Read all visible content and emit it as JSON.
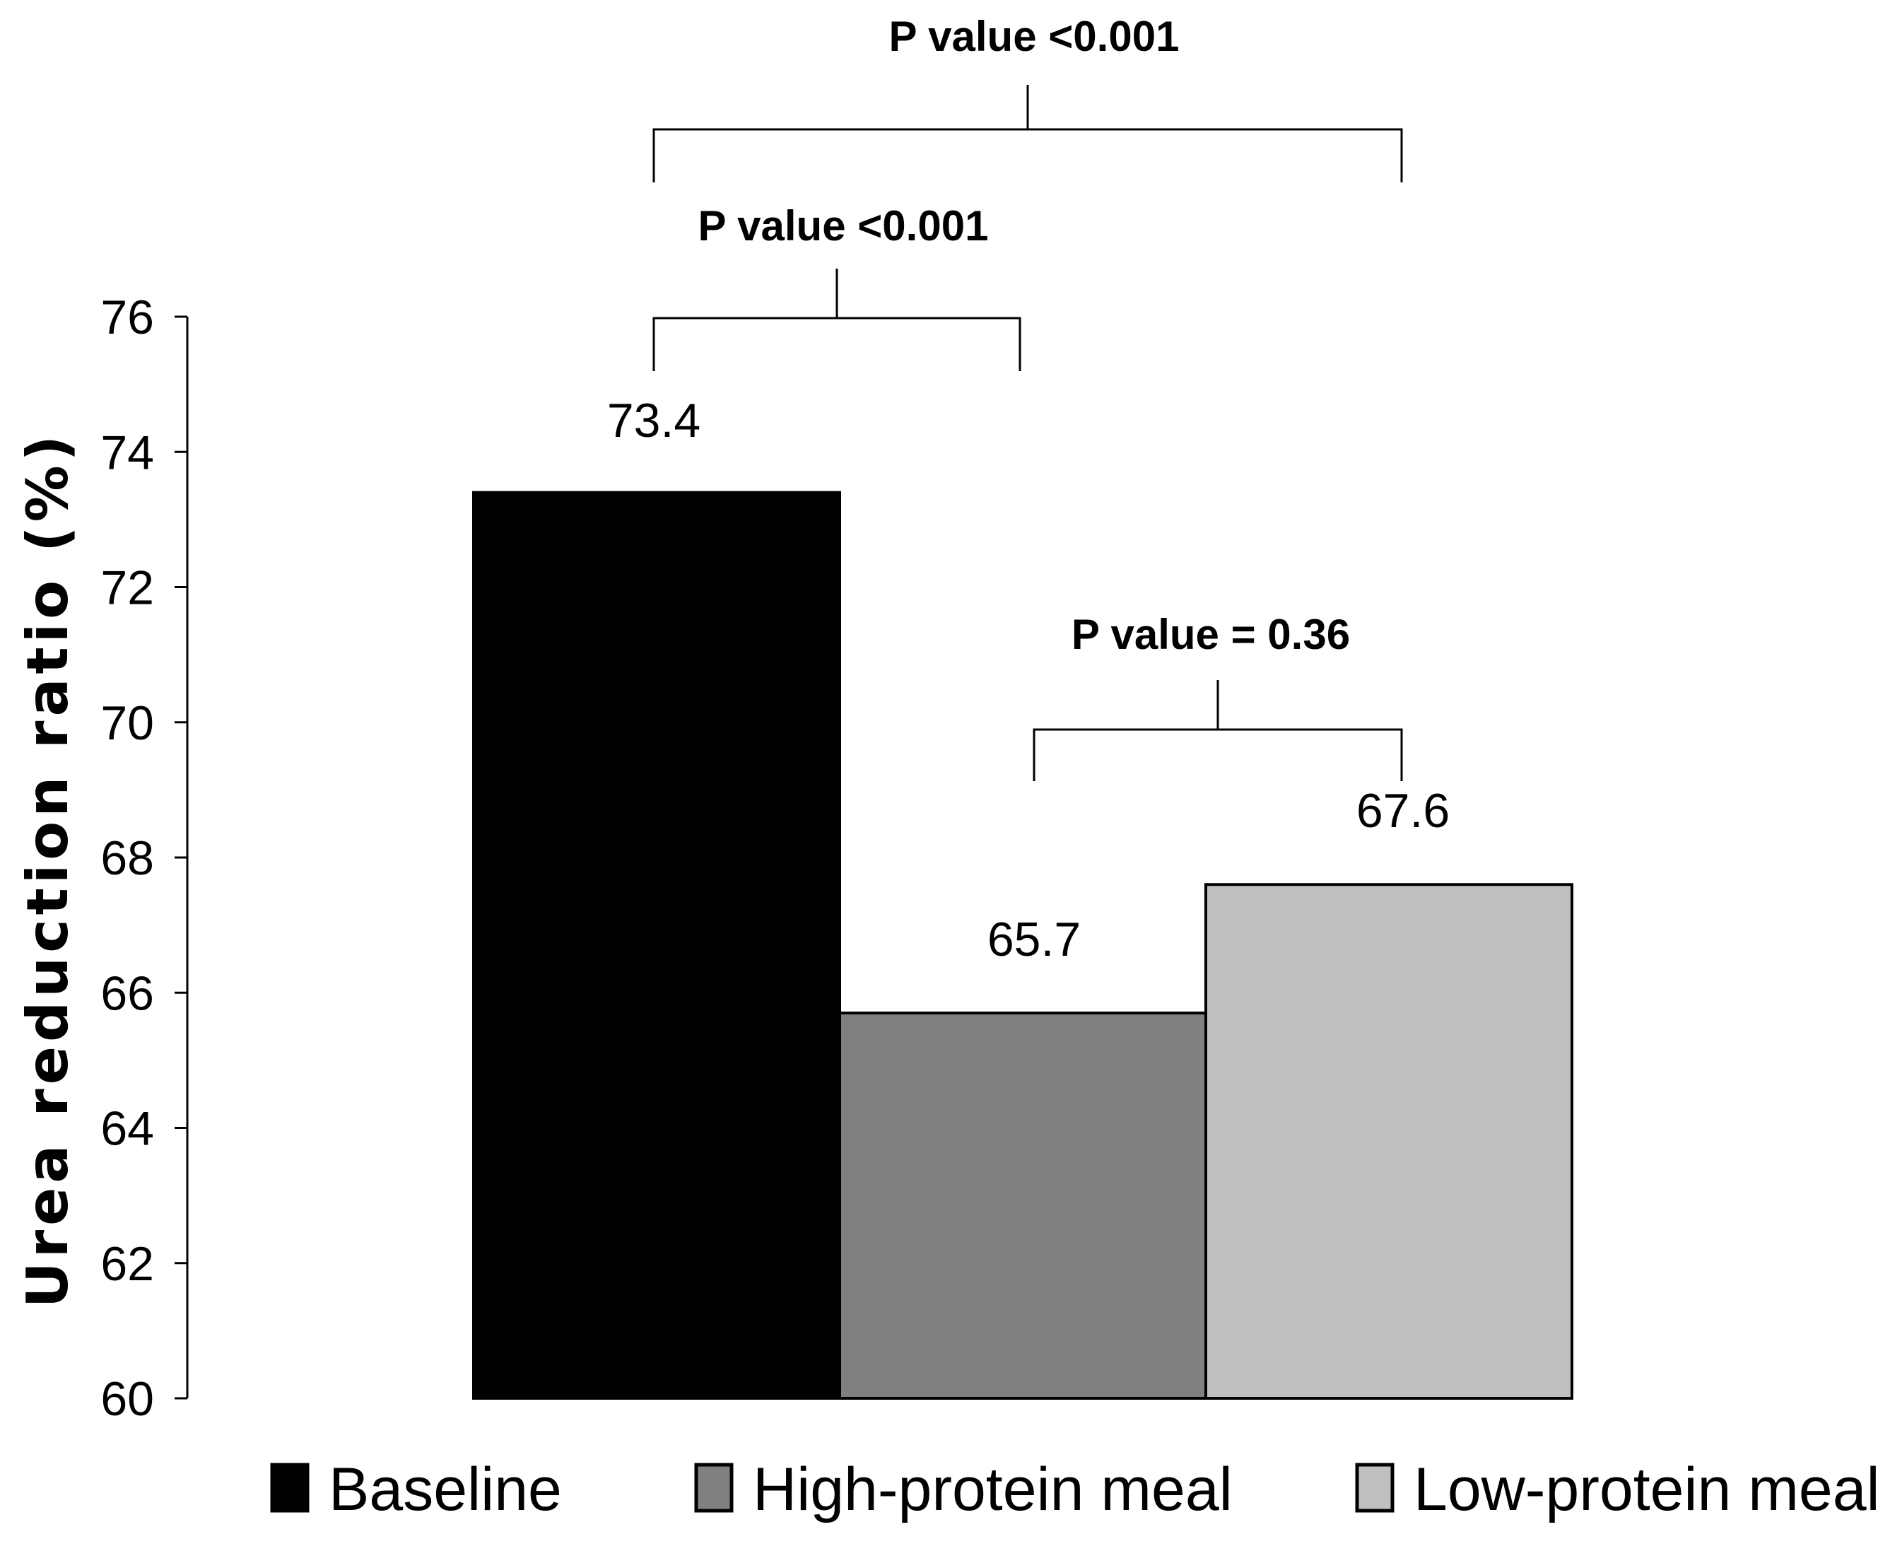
{
  "chart_data": {
    "type": "bar",
    "categories": [
      "Baseline",
      "High-protein meal",
      "Low-protein meal"
    ],
    "values": [
      73.4,
      65.7,
      67.6
    ],
    "value_labels": [
      "73.4",
      "65.7",
      "67.6"
    ],
    "colors": [
      "#000000",
      "#808080",
      "#c0c0c0"
    ],
    "ylabel": "Urea reduction ratio (%)",
    "ylim": [
      60,
      76
    ],
    "yticks": [
      "60",
      "62",
      "64",
      "66",
      "68",
      "70",
      "72",
      "74",
      "76"
    ],
    "grid": false,
    "legend": {
      "placement": "bottom",
      "entries": [
        "Baseline",
        "High-protein meal",
        "Low-protein meal"
      ]
    },
    "annotations": [
      {
        "text": "P value <0.001",
        "between": [
          "Baseline",
          "Low-protein meal"
        ]
      },
      {
        "text": "P value <0.001",
        "between": [
          "Baseline",
          "High-protein meal"
        ]
      },
      {
        "text": "P value = 0.36",
        "between": [
          "High-protein meal",
          "Low-protein meal"
        ]
      }
    ]
  }
}
